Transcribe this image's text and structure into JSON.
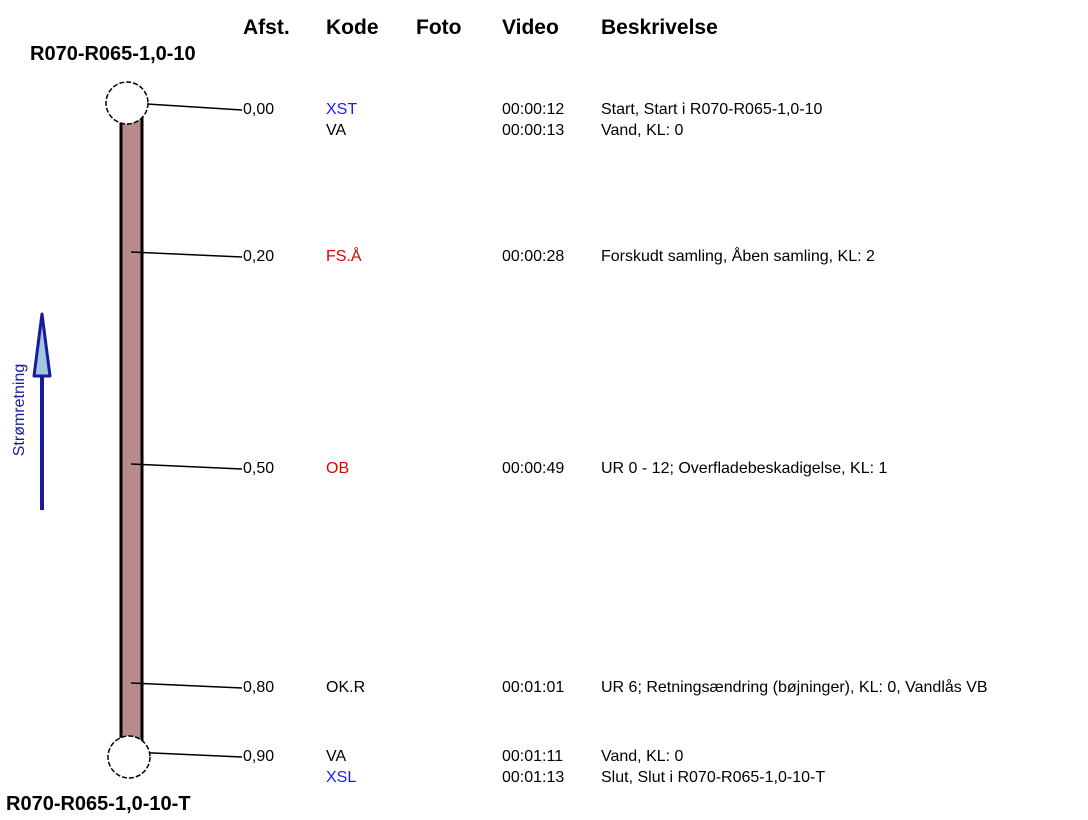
{
  "headers": {
    "afst": "Afst.",
    "kode": "Kode",
    "foto": "Foto",
    "video": "Video",
    "beskrivelse": "Beskrivelse"
  },
  "top_manhole": "R070-R065-1,0-10",
  "bottom_manhole": "R070-R065-1,0-10-T",
  "flow_label": "Strømretning",
  "colors": {
    "pipe_fill": "#b98a8a",
    "pipe_stroke": "#000000",
    "flow_arrow": "#1a1aa0",
    "flow_arrow_fill": "#9ec9dc",
    "code_blue": "#1a1aff",
    "code_red": "#e00000",
    "code_black": "#000000"
  },
  "rows": [
    {
      "afst": "0,00",
      "kode": "XST",
      "code_color": "#1a1aff",
      "video": "00:00:12",
      "beskrivelse": "Start, Start i R070-R065-1,0-10"
    },
    {
      "afst": "",
      "kode": "VA",
      "code_color": "#000000",
      "video": "00:00:13",
      "beskrivelse": "Vand, KL: 0"
    },
    {
      "afst": "0,20",
      "kode": "FS.Å",
      "code_color": "#e00000",
      "video": "00:00:28",
      "beskrivelse": "Forskudt samling, Åben samling, KL: 2"
    },
    {
      "afst": "0,50",
      "kode": "OB",
      "code_color": "#e00000",
      "video": "00:00:49",
      "beskrivelse": "UR 0 - 12; Overfladebeskadigelse, KL: 1"
    },
    {
      "afst": "0,80",
      "kode": "OK.R",
      "code_color": "#000000",
      "video": "00:01:01",
      "beskrivelse": "UR 6; Retningsændring (bøjninger), KL: 0, Vandlås VB"
    },
    {
      "afst": "0,90",
      "kode": "VA",
      "code_color": "#000000",
      "video": "00:01:11",
      "beskrivelse": "Vand, KL: 0"
    },
    {
      "afst": "",
      "kode": "XSL",
      "code_color": "#1a1aff",
      "video": "00:01:13",
      "beskrivelse": "Slut, Slut i R070-R065-1,0-10-T"
    }
  ]
}
